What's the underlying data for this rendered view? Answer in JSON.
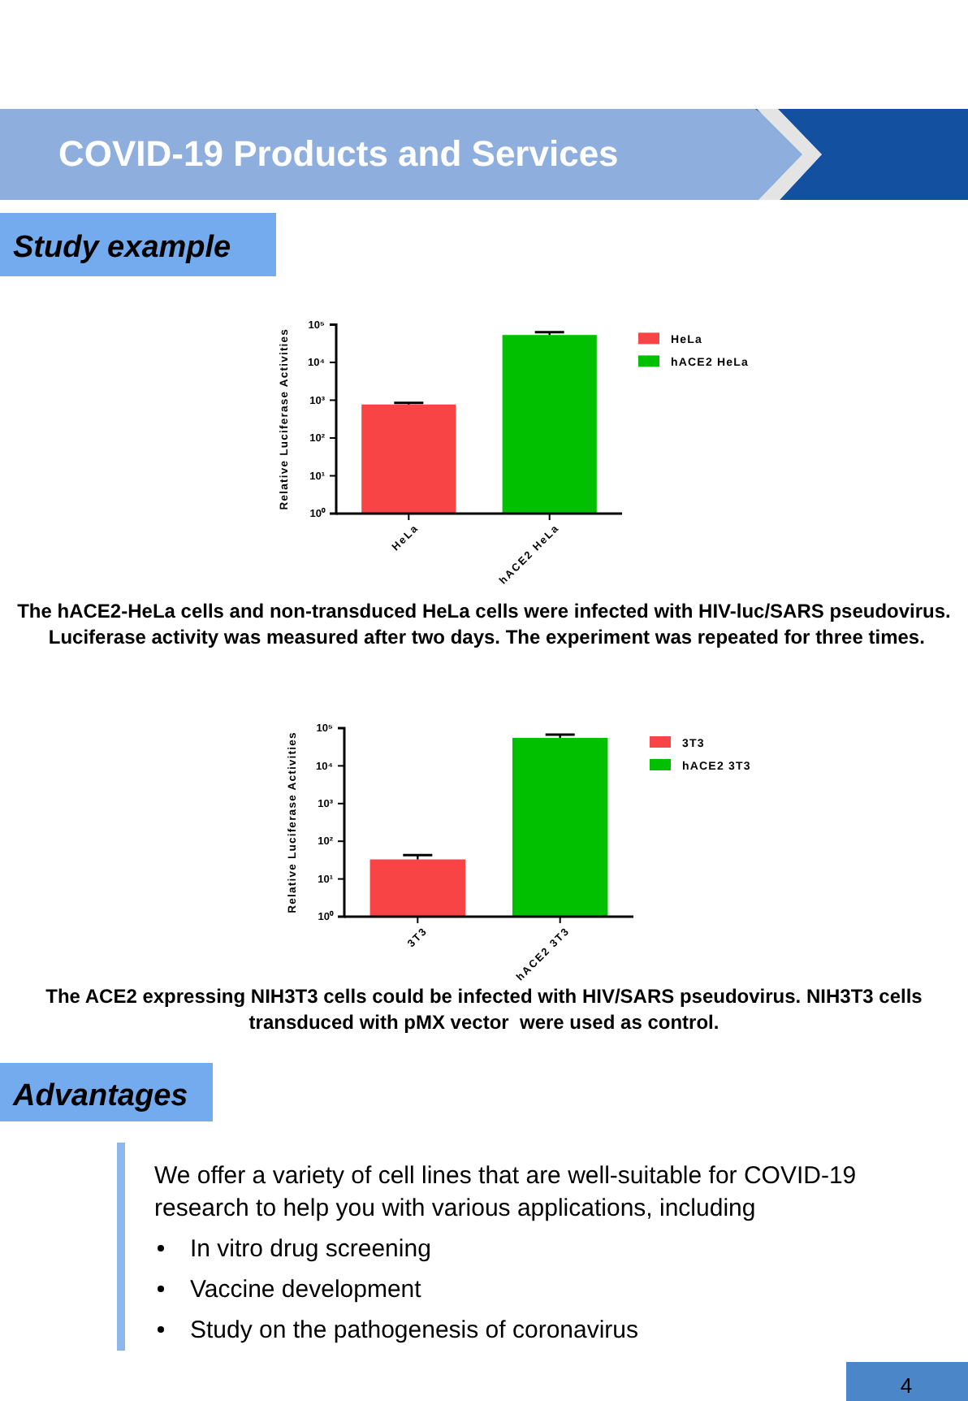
{
  "chart_data": [
    {
      "type": "other",
      "title": "COVID-19 Products and Services",
      "annotations": [
        "Study example"
      ]
    },
    {
      "type": "bar",
      "categories": [
        "HeLa",
        "hACE2 HeLa"
      ],
      "ylabel": "Relative Luciferase Activities",
      "log": "y",
      "ylim": [
        1,
        100000
      ],
      "yticks": [
        {
          "value": 1,
          "label": "10⁰"
        },
        {
          "value": 10,
          "label": "10¹"
        },
        {
          "value": 100,
          "label": "10²"
        },
        {
          "value": 1000,
          "label": "10³"
        },
        {
          "value": 10000,
          "label": "10⁴"
        },
        {
          "value": 100000,
          "label": "10⁵"
        }
      ],
      "series": [
        {
          "name": "HeLa",
          "color": "#f84444",
          "values": [
            770,
            null
          ],
          "errors": [
            [
              770,
              850
            ],
            null
          ]
        },
        {
          "name": "hACE2 HeLa",
          "color": "#00c000",
          "values": [
            null,
            53000
          ],
          "errors": [
            null,
            [
              53000,
              63000
            ]
          ]
        }
      ],
      "legend": "right",
      "grid": false,
      "annotations": [
        "The hACE2-HeLa cells and non-transduced HeLa cells were infected with HIV-luc/SARS pseudovirus.  Luciferase activity was measured after two days. The experiment was repeated for three times."
      ]
    },
    {
      "type": "bar",
      "categories": [
        "3T3",
        "hACE2 3T3"
      ],
      "ylabel": "Relative Luciferase Activities",
      "log": "y",
      "ylim": [
        1,
        100000
      ],
      "yticks": [
        {
          "value": 1,
          "label": "10⁰"
        },
        {
          "value": 10,
          "label": "10¹"
        },
        {
          "value": 100,
          "label": "10²"
        },
        {
          "value": 1000,
          "label": "10³"
        },
        {
          "value": 10000,
          "label": "10⁴"
        },
        {
          "value": 100000,
          "label": "10⁵"
        }
      ],
      "series": [
        {
          "name": "3T3",
          "color": "#f84444",
          "values": [
            33,
            null
          ],
          "errors": [
            [
              33,
              43
            ],
            null
          ]
        },
        {
          "name": "hACE2 3T3",
          "color": "#00c000",
          "values": [
            null,
            55000
          ],
          "errors": [
            null,
            [
              55000,
              67000
            ]
          ]
        }
      ],
      "legend": "right",
      "grid": false,
      "annotations": [
        "The ACE2 expressing NIH3T3 cells could be infected with HIV/SARS pseudovirus. NIH3T3 cells transduced with pMX vector  were used as control."
      ]
    },
    {
      "type": "other",
      "title": "Advantages",
      "annotations": [
        "We offer a variety of cell lines that are well-suitable for COVID-19 research to help you with various applications, including",
        "In vitro drug screening",
        "Vaccine development",
        "Study on the pathogenesis of coronavirus",
        "4"
      ]
    }
  ]
}
